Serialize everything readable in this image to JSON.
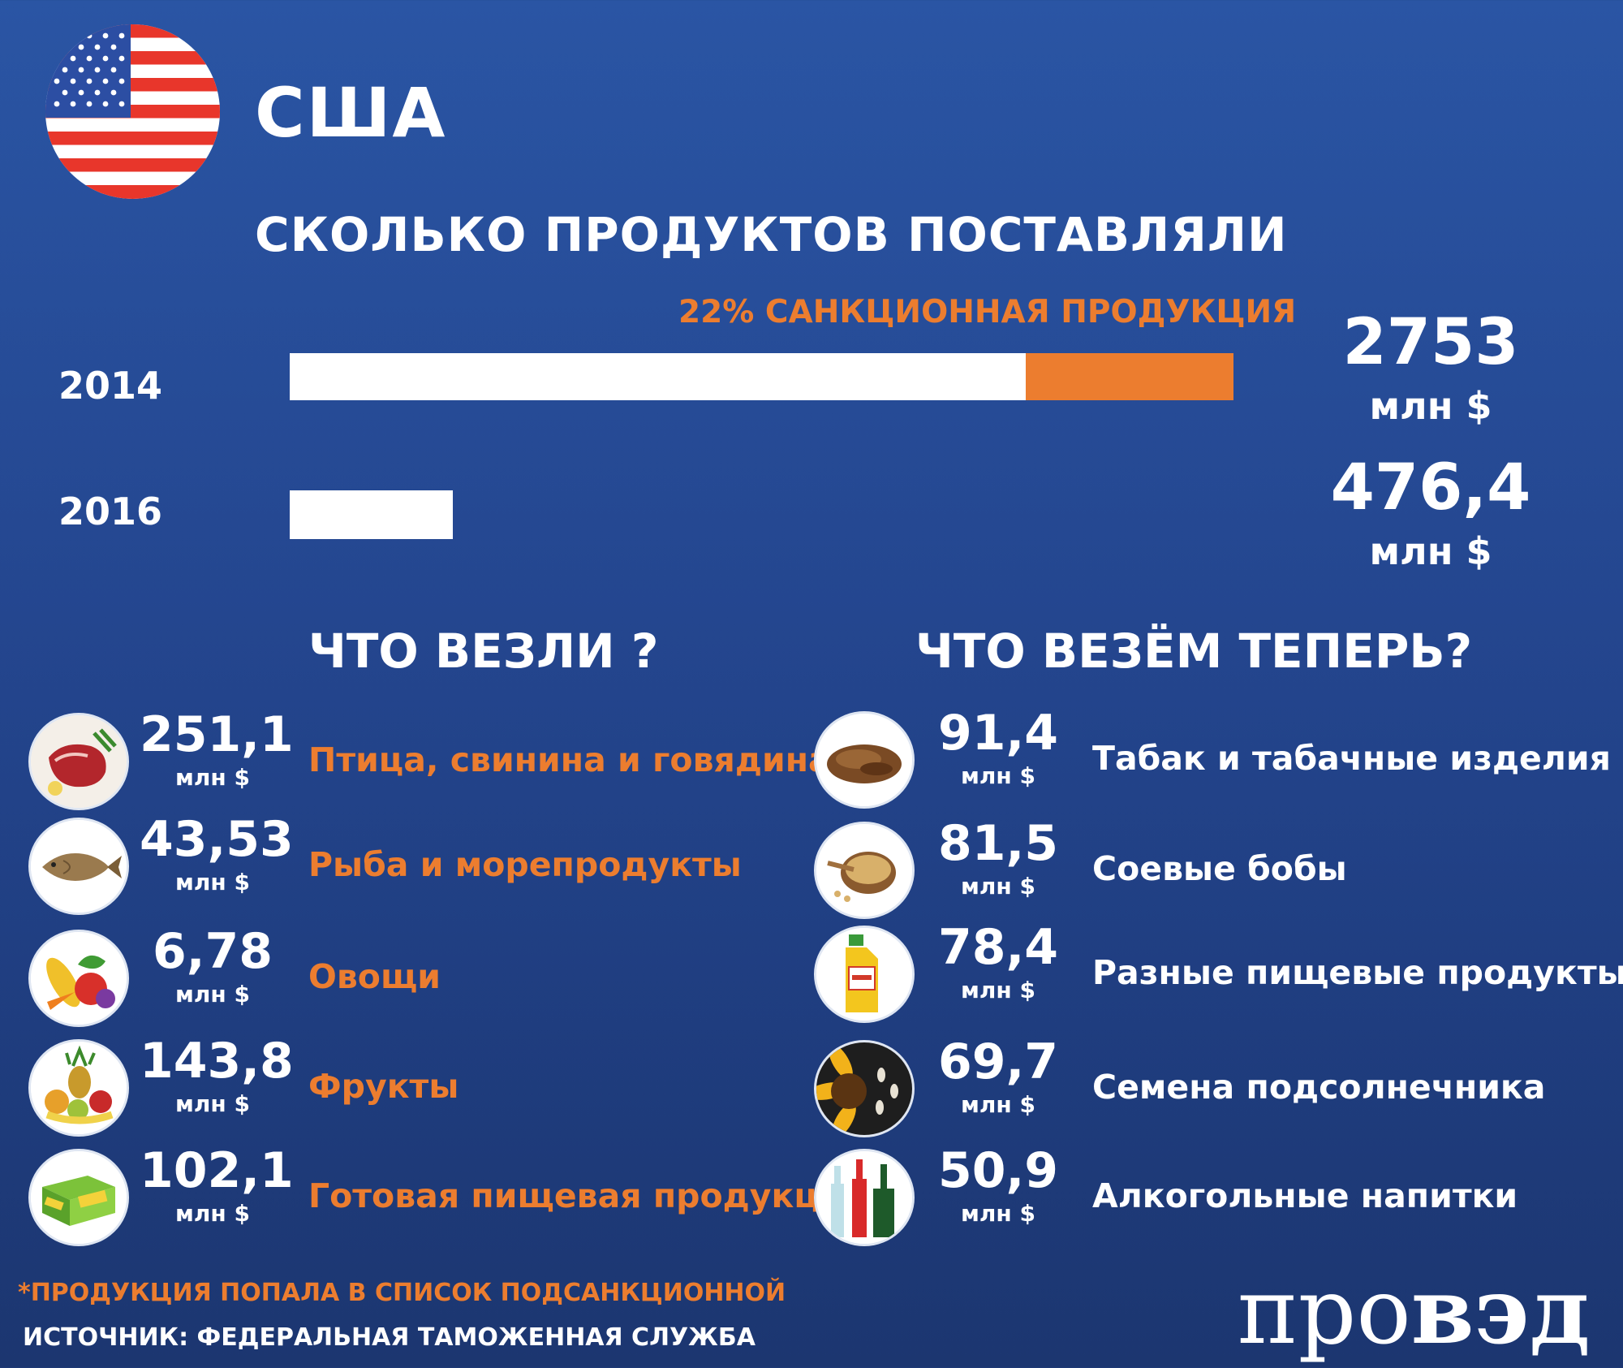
{
  "header": {
    "country": "США",
    "title": "СКОЛЬКО ПРОДУКТОВ ПОСТАВЛЯЛИ"
  },
  "chart_data": {
    "type": "bar",
    "orientation": "horizontal",
    "categories": [
      "2014",
      "2016"
    ],
    "series": [
      {
        "values": [
          2753,
          476.4
        ]
      }
    ],
    "sanction_share_2014": 0.22,
    "annotation": "22% САНКЦИОННАЯ ПРОДУКЦИЯ",
    "totals": [
      {
        "year": "2014",
        "value_label": "2753",
        "unit": "млн $"
      },
      {
        "year": "2016",
        "value_label": "476,4",
        "unit": "млн $"
      }
    ],
    "colors": {
      "base": "#ffffff",
      "sanction": "#ec7d2f"
    }
  },
  "imports_before": {
    "title": "ЧТО ВЕЗЛИ ?",
    "items": [
      {
        "value": "251,1",
        "unit": "млн $",
        "label": "Птица, свинина и говядина",
        "icon": "meat-icon"
      },
      {
        "value": "43,53",
        "unit": "млн $",
        "label": "Рыба и морепродукты",
        "icon": "fish-icon"
      },
      {
        "value": "6,78",
        "unit": "млн $",
        "label": "Овощи",
        "icon": "vegetables-icon"
      },
      {
        "value": "143,8",
        "unit": "млн $",
        "label": "Фрукты",
        "icon": "fruits-icon"
      },
      {
        "value": "102,1",
        "unit": "млн $",
        "label": "Готовая пищевая продукция",
        "icon": "packaged-food-icon"
      }
    ]
  },
  "imports_now": {
    "title": "ЧТО ВЕЗЁМ ТЕПЕРЬ?",
    "items": [
      {
        "value": "91,4",
        "unit": "млн $",
        "label": "Табак и табачные изделия",
        "icon": "tobacco-icon"
      },
      {
        "value": "81,5",
        "unit": "млн $",
        "label": "Соевые бобы",
        "icon": "soybeans-icon"
      },
      {
        "value": "78,4",
        "unit": "млн $",
        "label": "Разные пищевые продукты",
        "icon": "syrup-bottle-icon"
      },
      {
        "value": "69,7",
        "unit": "млн $",
        "label": "Семена подсолнечника",
        "icon": "sunflower-icon"
      },
      {
        "value": "50,9",
        "unit": "млн $",
        "label": "Алкогольные напитки",
        "icon": "bottles-icon"
      }
    ]
  },
  "footer": {
    "footnote": "*ПРОДУКЦИЯ ПОПАЛА В СПИСОК ПОДСАНКЦИОННОЙ",
    "source": "ИСТОЧНИК: ФЕДЕРАЛЬНАЯ ТАМОЖЕННАЯ СЛУЖБА",
    "logo": {
      "part1": "про",
      "part2": "вэд"
    }
  }
}
